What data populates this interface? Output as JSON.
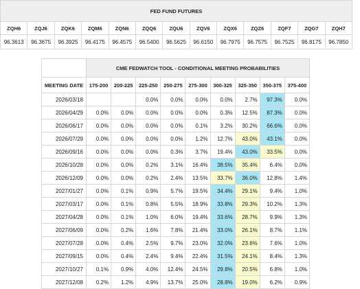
{
  "futures": {
    "title": "FED FUND FUTURES",
    "contracts": [
      "ZQH6",
      "ZQJ6",
      "ZQK6",
      "ZQM6",
      "ZQN6",
      "ZQQ6",
      "ZQU6",
      "ZQV6",
      "ZQX6",
      "ZQZ6",
      "ZQF7",
      "ZQG7",
      "ZQH7"
    ],
    "prices": [
      "96.3613",
      "96.3675",
      "96.3925",
      "96.4175",
      "96.4575",
      "96.5400",
      "96.5625",
      "96.6150",
      "96.7975",
      "96.7575",
      "96.7525",
      "96.8175",
      "96.7850"
    ]
  },
  "fedwatch": {
    "title": "CME FEDWATCH TOOL - CONDITIONAL MEETING PROBABILITIES",
    "date_header": "MEETING DATE",
    "ranges": [
      "175-200",
      "200-225",
      "225-250",
      "250-275",
      "275-300",
      "300-325",
      "325-350",
      "350-375",
      "375-400"
    ],
    "highlight_colors": {
      "max": "#a8e4f4",
      "second": "#fafacf"
    },
    "rows": [
      {
        "date": "2026/03/18",
        "values": [
          "",
          "",
          "0.0%",
          "0.0%",
          "0.0%",
          "0.0%",
          "2.7%",
          "97.3%",
          "0.0%"
        ],
        "max": 7,
        "second": -1
      },
      {
        "date": "2026/04/29",
        "values": [
          "0.0%",
          "0.0%",
          "0.0%",
          "0.0%",
          "0.0%",
          "0.3%",
          "12.5%",
          "87.3%",
          "0.0%"
        ],
        "max": 7,
        "second": -1
      },
      {
        "date": "2026/06/17",
        "values": [
          "0.0%",
          "0.0%",
          "0.0%",
          "0.0%",
          "0.1%",
          "3.2%",
          "30.2%",
          "66.6%",
          "0.0%"
        ],
        "max": 7,
        "second": -1
      },
      {
        "date": "2026/07/29",
        "values": [
          "0.0%",
          "0.0%",
          "0.0%",
          "0.0%",
          "1.2%",
          "12.7%",
          "43.0%",
          "43.1%",
          "0.0%"
        ],
        "max": 7,
        "second": 6
      },
      {
        "date": "2026/09/16",
        "values": [
          "0.0%",
          "0.0%",
          "0.0%",
          "0.3%",
          "3.7%",
          "19.4%",
          "43.0%",
          "33.5%",
          "0.0%"
        ],
        "max": 6,
        "second": 7
      },
      {
        "date": "2026/10/28",
        "values": [
          "0.0%",
          "0.0%",
          "0.2%",
          "3.1%",
          "16.4%",
          "38.5%",
          "35.4%",
          "6.4%",
          "0.0%"
        ],
        "max": 5,
        "second": 6
      },
      {
        "date": "2026/12/09",
        "values": [
          "0.0%",
          "0.0%",
          "0.2%",
          "2.4%",
          "13.5%",
          "33.7%",
          "36.0%",
          "12.8%",
          "1.4%"
        ],
        "max": 6,
        "second": 5
      },
      {
        "date": "2027/01/27",
        "values": [
          "0.0%",
          "0.1%",
          "0.9%",
          "5.7%",
          "19.5%",
          "34.4%",
          "29.1%",
          "9.4%",
          "1.0%"
        ],
        "max": 5,
        "second": 6
      },
      {
        "date": "2027/03/17",
        "values": [
          "0.0%",
          "0.1%",
          "0.8%",
          "5.5%",
          "18.9%",
          "33.8%",
          "29.3%",
          "10.2%",
          "1.3%"
        ],
        "max": 5,
        "second": 6
      },
      {
        "date": "2027/04/28",
        "values": [
          "0.0%",
          "0.1%",
          "1.0%",
          "6.0%",
          "19.4%",
          "33.6%",
          "28.7%",
          "9.9%",
          "1.3%"
        ],
        "max": 5,
        "second": 6
      },
      {
        "date": "2027/06/09",
        "values": [
          "0.0%",
          "0.2%",
          "1.6%",
          "7.8%",
          "21.4%",
          "33.0%",
          "26.1%",
          "8.7%",
          "1.1%"
        ],
        "max": 5,
        "second": 6
      },
      {
        "date": "2027/07/28",
        "values": [
          "0.0%",
          "0.4%",
          "2.5%",
          "9.7%",
          "23.0%",
          "32.0%",
          "23.6%",
          "7.6%",
          "1.0%"
        ],
        "max": 5,
        "second": 6
      },
      {
        "date": "2027/09/15",
        "values": [
          "0.0%",
          "0.4%",
          "2.4%",
          "9.4%",
          "22.4%",
          "31.5%",
          "24.1%",
          "8.4%",
          "1.3%"
        ],
        "max": 5,
        "second": 6
      },
      {
        "date": "2027/10/27",
        "values": [
          "0.1%",
          "0.9%",
          "4.0%",
          "12.4%",
          "24.5%",
          "29.8%",
          "20.5%",
          "6.8%",
          "1.0%"
        ],
        "max": 5,
        "second": 6
      },
      {
        "date": "2027/12/08",
        "values": [
          "0.2%",
          "1.2%",
          "4.9%",
          "13.7%",
          "25.0%",
          "28.8%",
          "19.0%",
          "6.2%",
          "0.9%"
        ],
        "max": 5,
        "second": 6
      }
    ]
  }
}
